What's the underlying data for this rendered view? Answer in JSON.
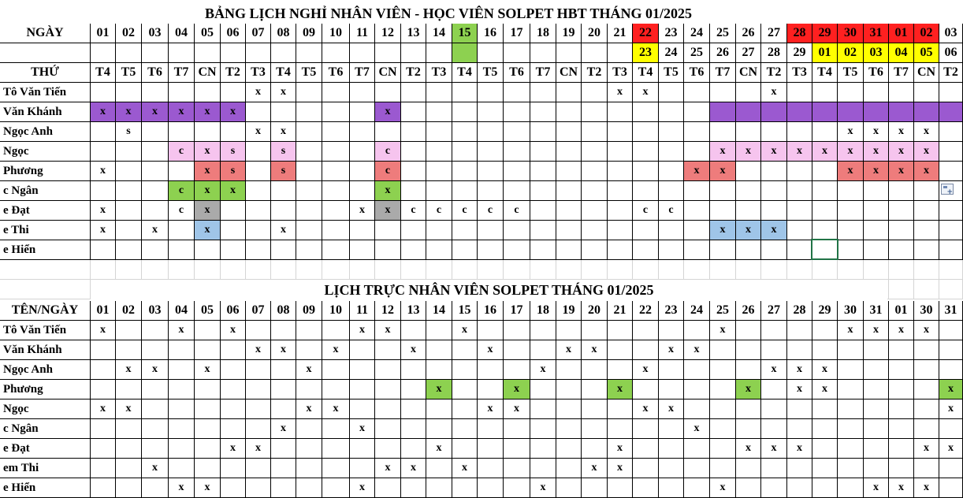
{
  "colors": {
    "purple": "#9b59d0",
    "pink": "#f6c4ee",
    "salmon": "#ee7c7c",
    "green": "#8dd150",
    "gray": "#aaaaaa",
    "blue": "#9fc5e8",
    "red": "#ff2020",
    "yellow": "#ffff00",
    "selection": "#217346"
  },
  "leave": {
    "title": "BẢNG LỊCH NGHỈ NHÂN VIÊN - HỌC VIÊN SOLPET HBT THÁNG 01/2025",
    "header_label": "NGÀY",
    "weekday_label": "THỨ",
    "dates": [
      "01",
      "02",
      "03",
      "04",
      "05",
      "06",
      "07",
      "08",
      "09",
      "10",
      "11",
      "12",
      "13",
      "14",
      "15",
      "16",
      "17",
      "18",
      "19",
      "20",
      "21",
      "22",
      "23",
      "24",
      "25",
      "26",
      "27",
      "28",
      "29",
      "30",
      "31",
      "01",
      "02",
      "03"
    ],
    "lunar": [
      "",
      "",
      "",
      "",
      "",
      "",
      "",
      "",
      "",
      "",
      "",
      "",
      "",
      "",
      "",
      "",
      "",
      "",
      "",
      "",
      "",
      "23",
      "24",
      "25",
      "26",
      "27",
      "28",
      "29",
      "01",
      "02",
      "03",
      "04",
      "05",
      "06"
    ],
    "weekdays": [
      "T4",
      "T5",
      "T6",
      "T7",
      "CN",
      "T2",
      "T3",
      "T4",
      "T5",
      "T6",
      "T7",
      "CN",
      "T2",
      "T3",
      "T4",
      "T5",
      "T6",
      "T7",
      "CN",
      "T2",
      "T3",
      "T4",
      "T5",
      "T6",
      "T7",
      "CN",
      "T2",
      "T3",
      "T4",
      "T5",
      "T6",
      "T7",
      "CN",
      "T2"
    ],
    "highlights": {
      "date_green": [
        14
      ],
      "date_red": [
        21,
        27,
        28,
        29,
        30,
        31,
        32
      ],
      "lunar_green": [
        14
      ],
      "lunar_yellow": [
        21,
        28,
        29,
        30,
        31,
        32
      ]
    },
    "rows": [
      {
        "name": "Tô Văn Tiến",
        "cells": {
          "6": "x",
          "7": "x",
          "20": "x",
          "21": "x",
          "26": "x"
        }
      },
      {
        "name": "Văn Khánh",
        "cells": {
          "0": "x",
          "1": "x",
          "2": "x",
          "3": "x",
          "4": "x",
          "5": "x",
          "11": "x"
        },
        "colors": {
          "0": "purple",
          "1": "purple",
          "2": "purple",
          "3": "purple",
          "4": "purple",
          "5": "purple",
          "11": "purple",
          "24": "purple",
          "25": "purple",
          "26": "purple",
          "27": "purple",
          "28": "purple",
          "29": "purple",
          "30": "purple",
          "31": "purple",
          "32": "purple",
          "33": "purple"
        }
      },
      {
        "name": "Ngọc Anh",
        "cells": {
          "1": "s",
          "6": "x",
          "7": "x",
          "29": "x",
          "30": "x",
          "31": "x",
          "32": "x"
        }
      },
      {
        "name": "Ngọc",
        "cells": {
          "3": "c",
          "4": "x",
          "5": "s",
          "7": "s",
          "11": "c",
          "24": "x",
          "25": "x",
          "26": "x",
          "27": "x",
          "28": "x",
          "29": "x",
          "30": "x",
          "31": "x",
          "32": "x"
        },
        "colors": {
          "3": "pink",
          "4": "pink",
          "5": "pink",
          "7": "pink",
          "11": "pink",
          "24": "pink",
          "25": "pink",
          "26": "pink",
          "27": "pink",
          "28": "pink",
          "29": "pink",
          "30": "pink",
          "31": "pink",
          "32": "pink"
        }
      },
      {
        "name": "Phương",
        "cells": {
          "0": "x",
          "4": "x",
          "5": "s",
          "7": "s",
          "11": "c",
          "23": "x",
          "24": "x",
          "29": "x",
          "30": "x",
          "31": "x",
          "32": "x"
        },
        "colors": {
          "4": "salmon",
          "5": "salmon",
          "7": "salmon",
          "11": "salmon",
          "23": "salmon",
          "24": "salmon",
          "29": "salmon",
          "30": "salmon",
          "31": "salmon",
          "32": "salmon"
        }
      },
      {
        "name": "c Ngân",
        "cells": {
          "3": "c",
          "4": "x",
          "5": "x",
          "11": "x"
        },
        "colors": {
          "3": "green",
          "4": "green",
          "5": "green",
          "11": "green"
        }
      },
      {
        "name": "e Đạt",
        "cells": {
          "0": "x",
          "3": "c",
          "4": "x",
          "10": "x",
          "11": "x",
          "12": "c",
          "13": "c",
          "14": "c",
          "15": "c",
          "16": "c",
          "21": "c",
          "22": "c"
        },
        "colors": {
          "4": "gray",
          "11": "gray"
        }
      },
      {
        "name": "e Thi",
        "cells": {
          "0": "x",
          "2": "x",
          "4": "x",
          "7": "x",
          "24": "x",
          "25": "x",
          "26": "x"
        },
        "colors": {
          "4": "blue",
          "24": "blue",
          "25": "blue",
          "26": "blue"
        }
      },
      {
        "name": "e Hiển",
        "cells": {}
      }
    ]
  },
  "duty": {
    "title": "LỊCH TRỰC NHÂN VIÊN SOLPET THÁNG 01/2025",
    "header_label": "TÊN/NGÀY",
    "dates": [
      "01",
      "02",
      "03",
      "04",
      "05",
      "06",
      "07",
      "08",
      "09",
      "10",
      "11",
      "12",
      "13",
      "14",
      "15",
      "16",
      "17",
      "18",
      "19",
      "20",
      "21",
      "22",
      "23",
      "24",
      "25",
      "26",
      "27",
      "28",
      "29",
      "30",
      "31",
      "01",
      "30",
      "31"
    ],
    "rows": [
      {
        "name": "Tô Văn Tiến",
        "cells": {
          "0": "x",
          "3": "x",
          "5": "x",
          "10": "x",
          "11": "x",
          "14": "x",
          "24": "x",
          "29": "x",
          "30": "x",
          "31": "x",
          "32": "x"
        }
      },
      {
        "name": "Văn Khánh",
        "cells": {
          "6": "x",
          "7": "x",
          "9": "x",
          "12": "x",
          "15": "x",
          "18": "x",
          "19": "x",
          "22": "x",
          "23": "x"
        }
      },
      {
        "name": "Ngọc Anh",
        "cells": {
          "1": "x",
          "2": "x",
          "4": "x",
          "8": "x",
          "17": "x",
          "21": "x",
          "26": "x",
          "27": "x",
          "28": "x"
        }
      },
      {
        "name": "Phương",
        "cells": {
          "13": "x",
          "16": "x",
          "20": "x",
          "25": "x",
          "27": "x",
          "28": "x",
          "33": "x"
        },
        "colors": {
          "13": "green",
          "16": "green",
          "20": "green",
          "25": "green",
          "33": "green"
        }
      },
      {
        "name": "Ngọc",
        "cells": {
          "0": "x",
          "1": "x",
          "8": "x",
          "9": "x",
          "15": "x",
          "16": "x",
          "21": "x",
          "22": "x",
          "33": "x"
        }
      },
      {
        "name": "c Ngân",
        "cells": {
          "7": "x",
          "10": "x",
          "23": "x"
        }
      },
      {
        "name": "e Đạt",
        "cells": {
          "5": "x",
          "6": "x",
          "13": "x",
          "20": "x",
          "25": "x",
          "26": "x",
          "27": "x",
          "32": "x",
          "33": "x"
        }
      },
      {
        "name": "em Thi",
        "cells": {
          "2": "x",
          "11": "x",
          "12": "x",
          "14": "x",
          "19": "x",
          "20": "x"
        }
      },
      {
        "name": "e Hiển",
        "cells": {
          "3": "x",
          "4": "x",
          "10": "x",
          "17": "x",
          "24": "x",
          "30": "x",
          "31": "x",
          "32": "x"
        }
      }
    ]
  }
}
